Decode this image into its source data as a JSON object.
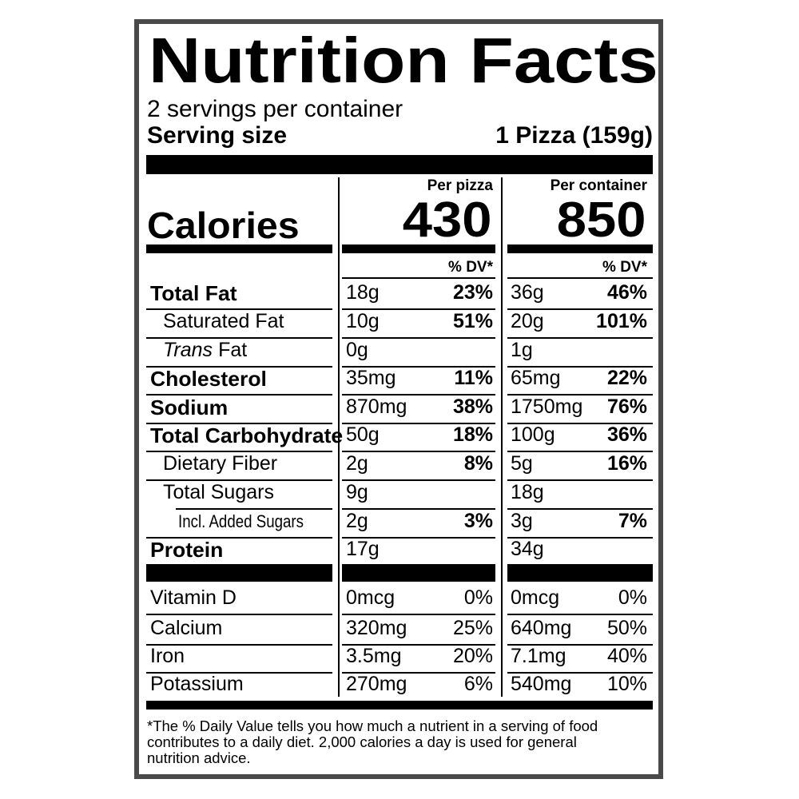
{
  "title": "Nutrition Facts",
  "servings_per_container": "2 servings per container",
  "serving_size": {
    "label": "Serving size",
    "value": "1 Pizza (159g)"
  },
  "calories": {
    "label": "Calories",
    "columns": [
      {
        "header": "Per pizza",
        "value": "430"
      },
      {
        "header": "Per container",
        "value": "850"
      }
    ]
  },
  "dv_header": [
    "% DV*",
    "% DV*"
  ],
  "nutrients": [
    {
      "name": "Total Fat",
      "bold": true,
      "indent": 0,
      "columns": [
        [
          "18g",
          "23%"
        ],
        [
          "36g",
          "46%"
        ]
      ]
    },
    {
      "name": "Saturated Fat",
      "bold": false,
      "indent": 1,
      "columns": [
        [
          "10g",
          "51%"
        ],
        [
          "20g",
          "101%"
        ]
      ]
    },
    {
      "italic_prefix": "Trans",
      "name": "Fat",
      "bold": false,
      "indent": 1,
      "columns": [
        [
          "0g"
        ],
        [
          "1g"
        ]
      ]
    },
    {
      "name": "Cholesterol",
      "bold": true,
      "indent": 0,
      "columns": [
        [
          "35mg",
          "11%"
        ],
        [
          "65mg",
          "22%"
        ]
      ]
    },
    {
      "name": "Sodium",
      "bold": true,
      "indent": 0,
      "columns": [
        [
          "870mg",
          "38%"
        ],
        [
          "1750mg",
          "76%"
        ]
      ]
    },
    {
      "name": "Total Carbohydrate",
      "bold": true,
      "indent": 0,
      "columns": [
        [
          "50g",
          "18%"
        ],
        [
          "100g",
          "36%"
        ]
      ]
    },
    {
      "name": "Dietary Fiber",
      "bold": false,
      "indent": 1,
      "columns": [
        [
          "2g",
          "8%"
        ],
        [
          "5g",
          "16%"
        ]
      ]
    },
    {
      "name": "Total Sugars",
      "bold": false,
      "indent": 1,
      "columns": [
        [
          "9g"
        ],
        [
          "18g"
        ]
      ]
    },
    {
      "name": "Incl. Added Sugars",
      "bold": false,
      "indent": 2,
      "columns": [
        [
          "2g",
          "3%"
        ],
        [
          "3g",
          "7%"
        ]
      ]
    },
    {
      "name": "Protein",
      "bold": true,
      "indent": 0,
      "columns": [
        [
          "17g"
        ],
        [
          "34g"
        ]
      ]
    }
  ],
  "vitamins": [
    {
      "name": "Vitamin D",
      "columns": [
        [
          "0mcg",
          "0%"
        ],
        [
          "0mcg",
          "0%"
        ]
      ]
    },
    {
      "name": "Calcium",
      "columns": [
        [
          "320mg",
          "25%"
        ],
        [
          "640mg",
          "50%"
        ]
      ]
    },
    {
      "name": "Iron",
      "columns": [
        [
          "3.5mg",
          "20%"
        ],
        [
          "7.1mg",
          "40%"
        ]
      ]
    },
    {
      "name": "Potassium",
      "columns": [
        [
          "270mg",
          "6%"
        ],
        [
          "540mg",
          "10%"
        ]
      ]
    }
  ],
  "footnote": [
    "*The % Daily Value tells you how much a nutrient in a serving of food",
    "contributes to a daily diet. 2,000 calories a day is used for general",
    "nutrition advice."
  ]
}
